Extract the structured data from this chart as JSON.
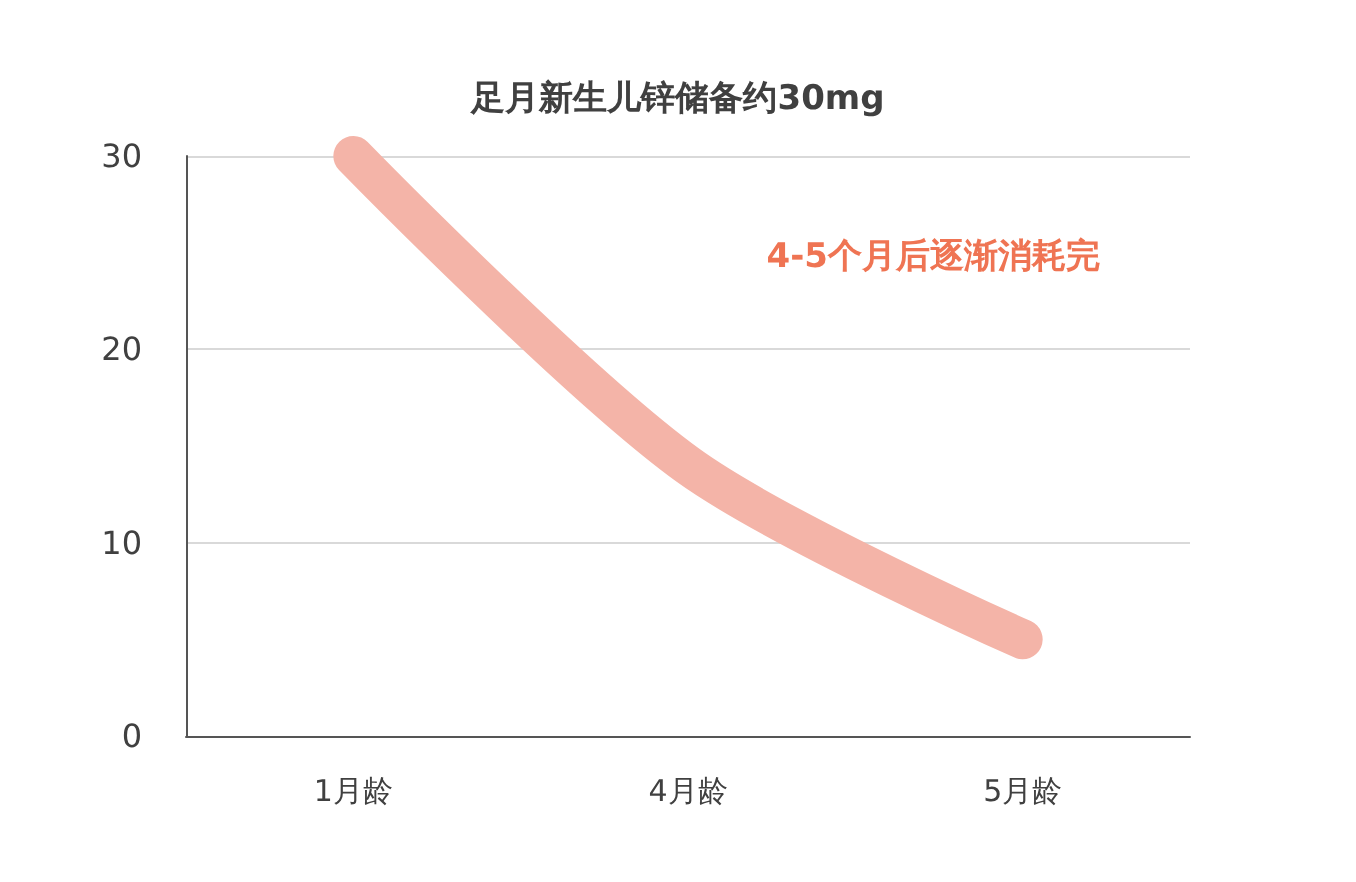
{
  "chart_data": {
    "type": "line",
    "title": "足月新生儿锌储备约30mg",
    "categories": [
      "1月龄",
      "4月龄",
      "5月龄"
    ],
    "series": [
      {
        "color": "#f4b4a8",
        "values": [
          30,
          14,
          5
        ]
      }
    ],
    "ylim": [
      0,
      30
    ],
    "yticks": [
      0,
      10,
      20,
      30
    ],
    "grid": "y",
    "annotations": [
      "4-5个月后逐渐消耗完"
    ]
  }
}
